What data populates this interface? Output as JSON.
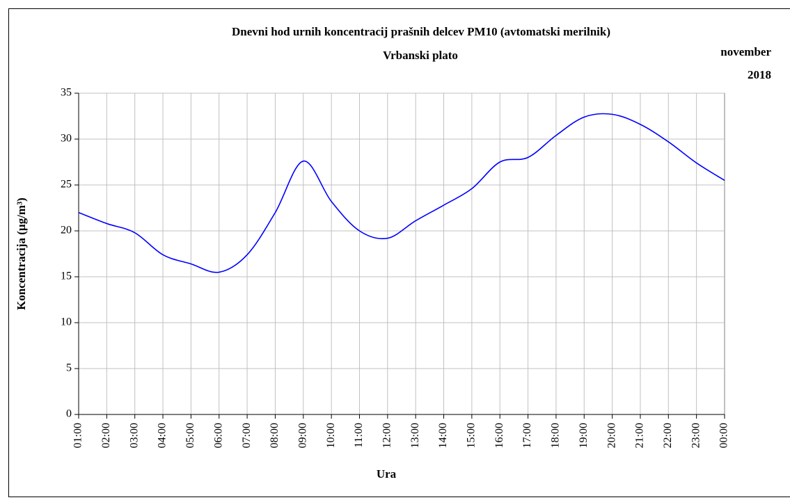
{
  "chart_data": {
    "type": "line",
    "title": "Dnevni  hod  urnih  koncentracij  prašnih  delcev  PM10  (avtomatski  merilnik)",
    "subtitle": "Vrbanski  plato",
    "annotations": [
      "november",
      "2018"
    ],
    "xlabel": "Ura",
    "ylabel": "Koncentracija (µg/m³)",
    "categories": [
      "01:00",
      "02:00",
      "03:00",
      "04:00",
      "05:00",
      "06:00",
      "07:00",
      "08:00",
      "09:00",
      "10:00",
      "11:00",
      "12:00",
      "13:00",
      "14:00",
      "15:00",
      "16:00",
      "17:00",
      "18:00",
      "19:00",
      "20:00",
      "21:00",
      "22:00",
      "23:00",
      "00:00"
    ],
    "values": [
      22,
      20.8,
      19.8,
      17.4,
      16.4,
      15.5,
      17.4,
      22,
      27.6,
      23.2,
      20,
      19.2,
      21.1,
      22.8,
      24.6,
      27.5,
      28,
      30.4,
      32.4,
      32.7,
      31.6,
      29.7,
      27.4,
      25.5
    ],
    "color": "#0000ff",
    "ylim": [
      0,
      35
    ],
    "yticks": [
      0,
      5,
      10,
      15,
      20,
      25,
      30,
      35
    ],
    "grid": true,
    "smooth": true
  }
}
